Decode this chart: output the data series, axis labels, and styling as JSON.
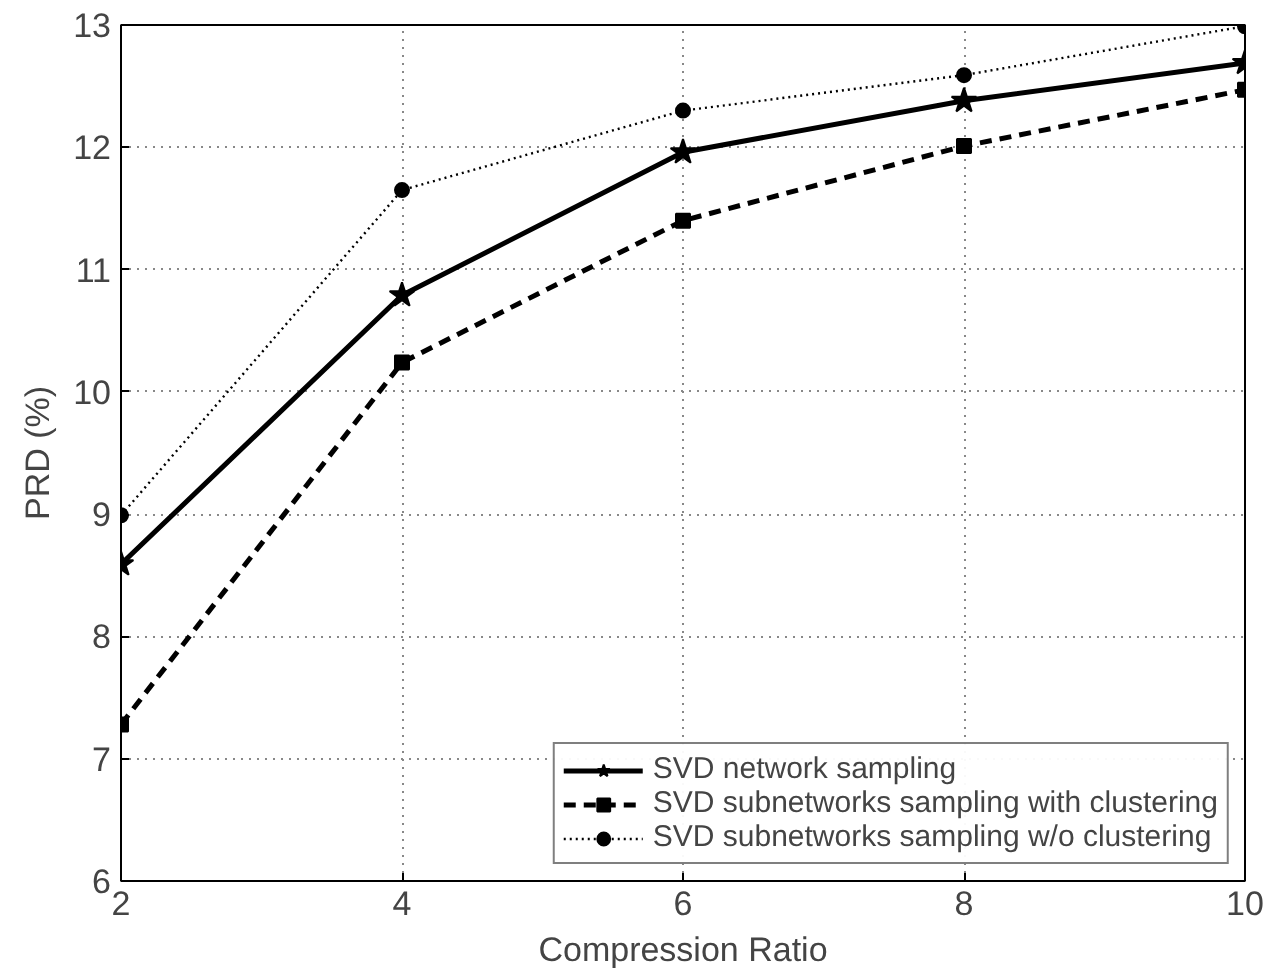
{
  "chart_data": {
    "type": "line",
    "xlabel": "Compression Ratio",
    "ylabel": "PRD (%)",
    "x": [
      2,
      4,
      6,
      8,
      10
    ],
    "xlim": [
      2,
      10
    ],
    "xticks": [
      2,
      4,
      6,
      8,
      10
    ],
    "ylim": [
      6,
      13
    ],
    "yticks": [
      6,
      7,
      8,
      9,
      10,
      11,
      12,
      13
    ],
    "grid": true,
    "legend": "bottom right",
    "series": [
      {
        "name": "SVD network sampling",
        "color": "#000000",
        "values": [
          8.59,
          10.79,
          11.96,
          12.38,
          12.69
        ],
        "marker": "star",
        "line_style": "solid"
      },
      {
        "name": "SVD subnetworks sampling with clustering",
        "color": "#000000",
        "values": [
          7.28,
          10.24,
          11.4,
          12.01,
          12.47
        ],
        "marker": "square",
        "line_style": "dashed"
      },
      {
        "name": "SVD subnetworks sampling w/o clustering",
        "color": "#000000",
        "values": [
          8.99,
          11.65,
          12.3,
          12.59,
          12.99
        ],
        "marker": "circle",
        "line_style": "dotted"
      }
    ]
  }
}
